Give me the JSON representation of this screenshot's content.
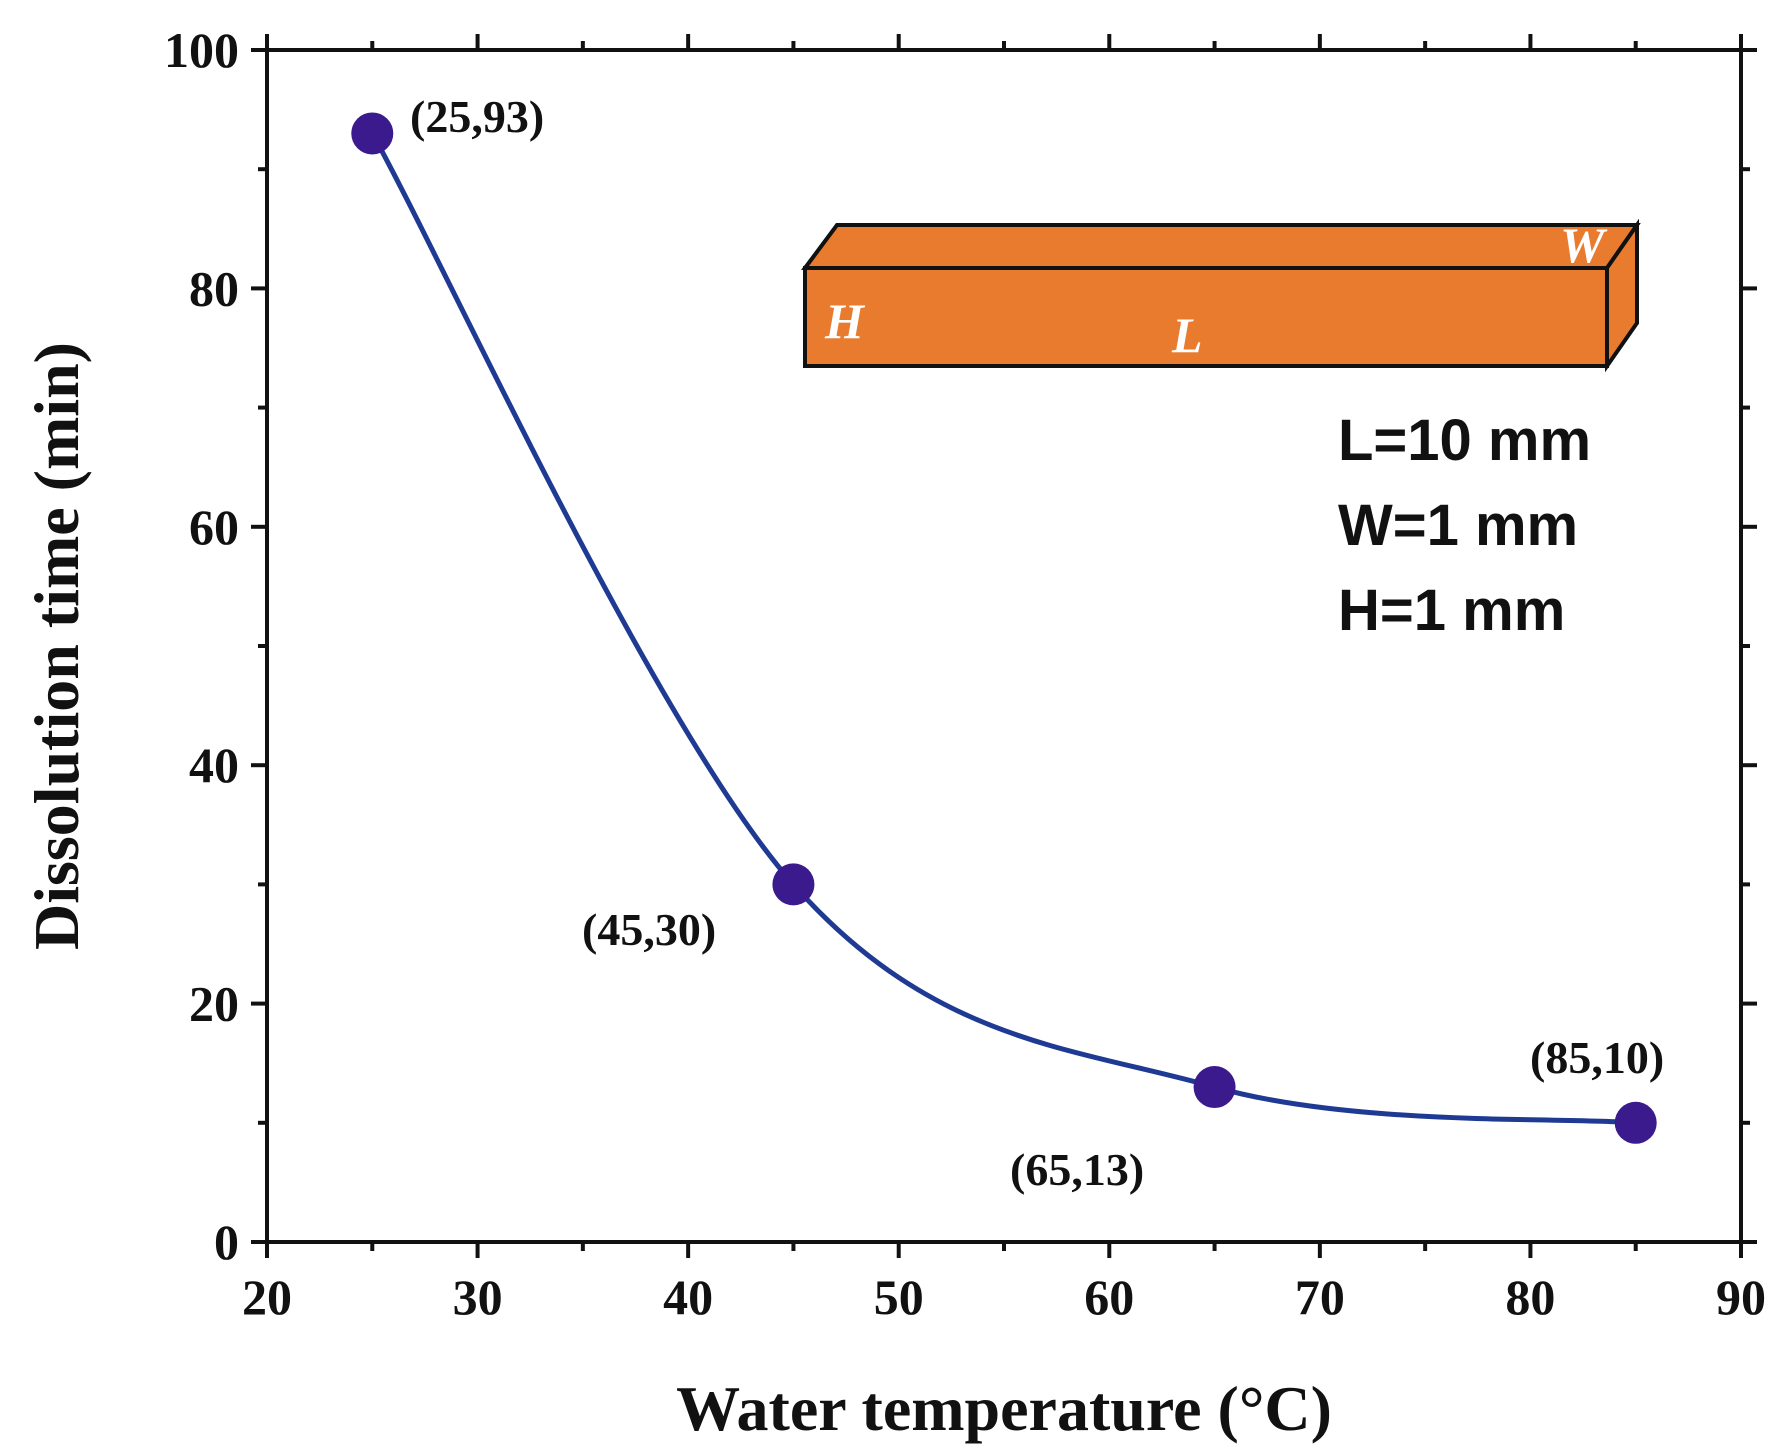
{
  "chart_data": {
    "type": "line",
    "title": "",
    "xlabel": "Water temperature (°C)",
    "ylabel": "Dissolution time (min)",
    "xlim": [
      20,
      90
    ],
    "ylim": [
      0,
      100
    ],
    "xticks": [
      20,
      30,
      40,
      50,
      60,
      70,
      80,
      90
    ],
    "yticks": [
      0,
      20,
      40,
      60,
      80,
      100
    ],
    "grid": false,
    "series": [
      {
        "name": "Dissolution time",
        "color": "#1f3a93",
        "marker_color": "#3a1a8c",
        "x": [
          25,
          45,
          65,
          85
        ],
        "y": [
          93,
          30,
          13,
          10
        ]
      }
    ],
    "annotations": [
      "(25,93)",
      "(45,30)",
      "(65,13)",
      "(85,10)"
    ],
    "inset": {
      "bar_color": "#e87b2e",
      "face_labels": {
        "height": "H",
        "length": "L",
        "width": "W"
      },
      "dimensions": [
        "L=10 mm",
        "W=1 mm",
        "H=1 mm"
      ]
    }
  }
}
